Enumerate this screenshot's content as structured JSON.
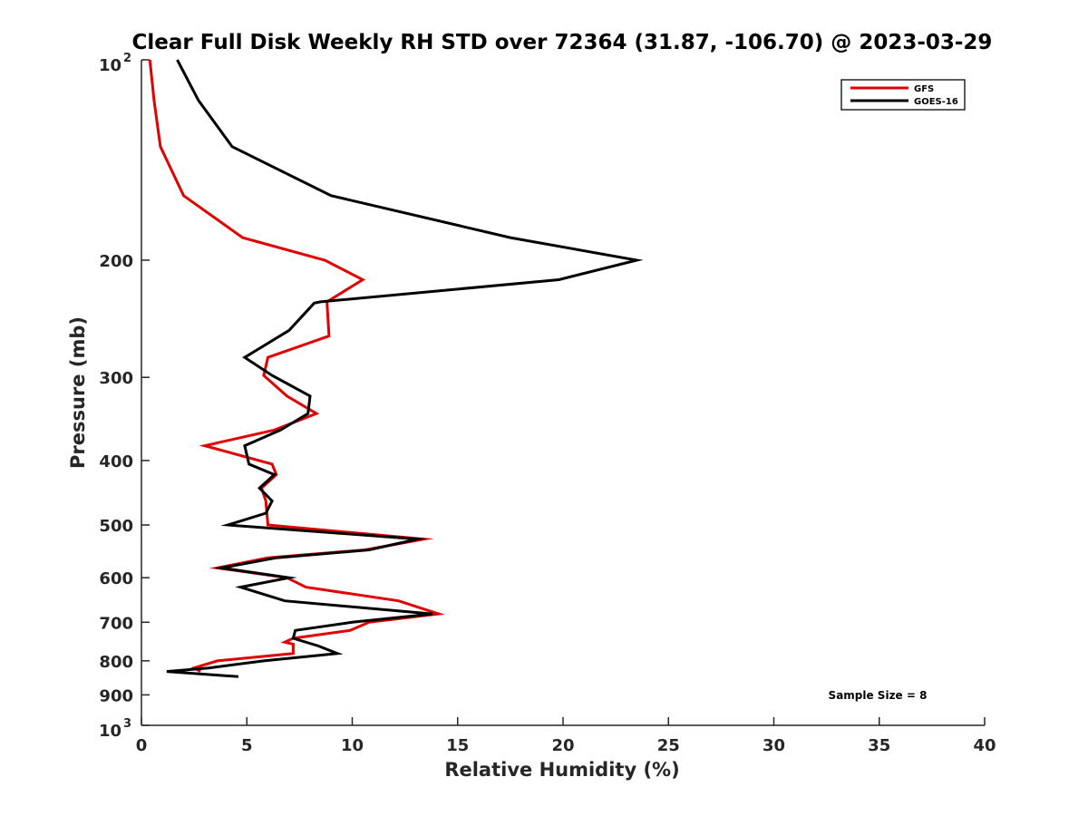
{
  "chart_data": {
    "type": "line",
    "title": "Clear Full Disk Weekly RH STD over 72364 (31.87, -106.70) @ 2023-03-29",
    "xlabel": "Relative Humidity (%)",
    "ylabel": "Pressure (mb)",
    "xlim": [
      0,
      40
    ],
    "ylim": [
      100,
      1000
    ],
    "y_scale": "log",
    "y_reversed": true,
    "x_ticks": [
      0,
      5,
      10,
      15,
      20,
      25,
      30,
      35,
      40
    ],
    "x_tick_labels": [
      "0",
      "5",
      "10",
      "15",
      "20",
      "25",
      "30",
      "35",
      "40"
    ],
    "y_ticks": [
      100,
      200,
      300,
      400,
      500,
      600,
      700,
      800,
      900,
      1000
    ],
    "y_tick_labels": [
      {
        "base": "10",
        "sup": "2"
      },
      {
        "base": "200",
        "sup": ""
      },
      {
        "base": "300",
        "sup": ""
      },
      {
        "base": "400",
        "sup": ""
      },
      {
        "base": "500",
        "sup": ""
      },
      {
        "base": "600",
        "sup": ""
      },
      {
        "base": "700",
        "sup": ""
      },
      {
        "base": "800",
        "sup": ""
      },
      {
        "base": "900",
        "sup": ""
      },
      {
        "base": "10",
        "sup": "3"
      }
    ],
    "grid": false,
    "legend_position": "top-right",
    "series": [
      {
        "name": "GFS",
        "color": "#e00000",
        "points": [
          [
            0.4,
            100
          ],
          [
            0.6,
            115
          ],
          [
            0.9,
            135
          ],
          [
            2.0,
            160
          ],
          [
            4.8,
            185
          ],
          [
            8.7,
            200
          ],
          [
            10.5,
            214
          ],
          [
            8.8,
            231
          ],
          [
            8.9,
            260
          ],
          [
            6.0,
            280
          ],
          [
            5.8,
            298
          ],
          [
            6.9,
            320
          ],
          [
            8.3,
            340
          ],
          [
            6.3,
            360
          ],
          [
            3.0,
            380
          ],
          [
            6.2,
            405
          ],
          [
            6.4,
            420
          ],
          [
            5.7,
            440
          ],
          [
            5.9,
            460
          ],
          [
            6.0,
            500
          ],
          [
            13.4,
            525
          ],
          [
            10.6,
            545
          ],
          [
            6.0,
            560
          ],
          [
            3.6,
            580
          ],
          [
            6.9,
            600
          ],
          [
            7.8,
            620
          ],
          [
            12.2,
            650
          ],
          [
            14.1,
            680
          ],
          [
            10.8,
            700
          ],
          [
            9.9,
            720
          ],
          [
            7.2,
            740
          ],
          [
            6.8,
            750
          ],
          [
            7.2,
            755
          ],
          [
            7.2,
            780
          ],
          [
            3.6,
            800
          ],
          [
            2.5,
            820
          ],
          [
            2.8,
            830
          ]
        ]
      },
      {
        "name": "GOES-16",
        "color": "#000000",
        "points": [
          [
            1.7,
            100
          ],
          [
            2.7,
            115
          ],
          [
            4.3,
            135
          ],
          [
            9.0,
            160
          ],
          [
            17.5,
            185
          ],
          [
            23.5,
            200
          ],
          [
            19.8,
            214
          ],
          [
            8.5,
            231
          ],
          [
            8.2,
            232
          ],
          [
            7.0,
            255
          ],
          [
            4.9,
            280
          ],
          [
            6.2,
            298
          ],
          [
            8.0,
            320
          ],
          [
            7.9,
            340
          ],
          [
            6.6,
            360
          ],
          [
            4.9,
            380
          ],
          [
            5.1,
            405
          ],
          [
            6.3,
            420
          ],
          [
            5.6,
            440
          ],
          [
            6.2,
            460
          ],
          [
            5.9,
            480
          ],
          [
            4.1,
            500
          ],
          [
            13.1,
            525
          ],
          [
            10.8,
            545
          ],
          [
            6.4,
            560
          ],
          [
            3.8,
            580
          ],
          [
            7.0,
            600
          ],
          [
            4.7,
            620
          ],
          [
            6.8,
            650
          ],
          [
            13.8,
            680
          ],
          [
            10.0,
            700
          ],
          [
            7.3,
            720
          ],
          [
            7.2,
            740
          ],
          [
            8.4,
            760
          ],
          [
            9.3,
            780
          ],
          [
            5.8,
            800
          ],
          [
            3.2,
            820
          ],
          [
            1.2,
            830
          ],
          [
            4.6,
            845
          ]
        ]
      }
    ],
    "annotation": "Sample Size = 8"
  }
}
